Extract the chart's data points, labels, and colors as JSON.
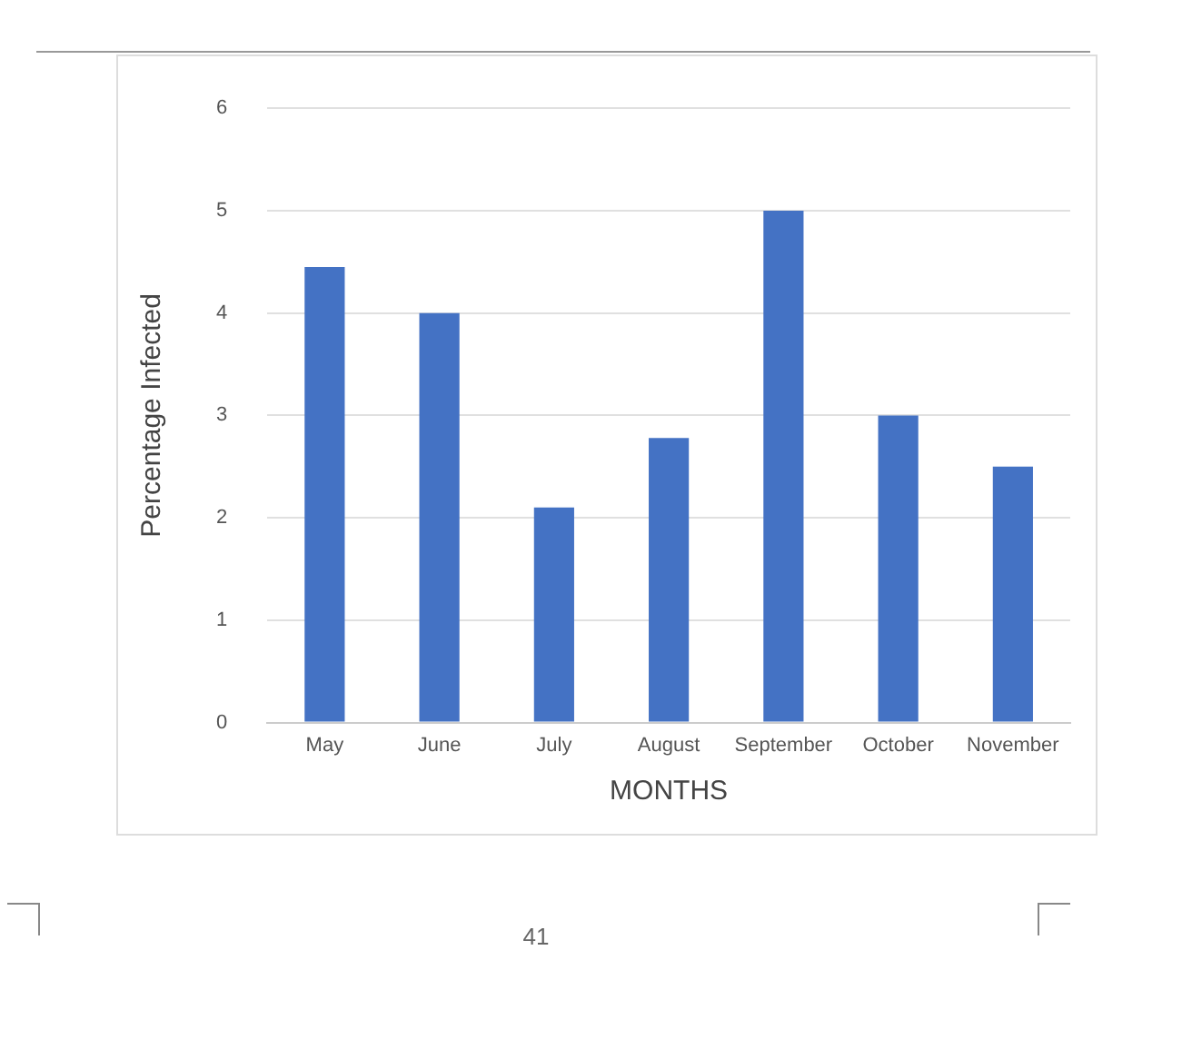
{
  "chart_data": {
    "type": "bar",
    "xlabel": "MONTHS",
    "ylabel": "Percentage Infected",
    "categories": [
      "May",
      "June",
      "July",
      "August",
      "September",
      "October",
      "November"
    ],
    "values": [
      4.45,
      4,
      2.1,
      2.78,
      5,
      3,
      2.5
    ],
    "color": "#4472c4",
    "ylim": [
      0,
      6
    ],
    "yticks": [
      0,
      1,
      2,
      3,
      4,
      5,
      6
    ],
    "grid": "y",
    "legend": false,
    "annotations": [
      "41"
    ]
  }
}
